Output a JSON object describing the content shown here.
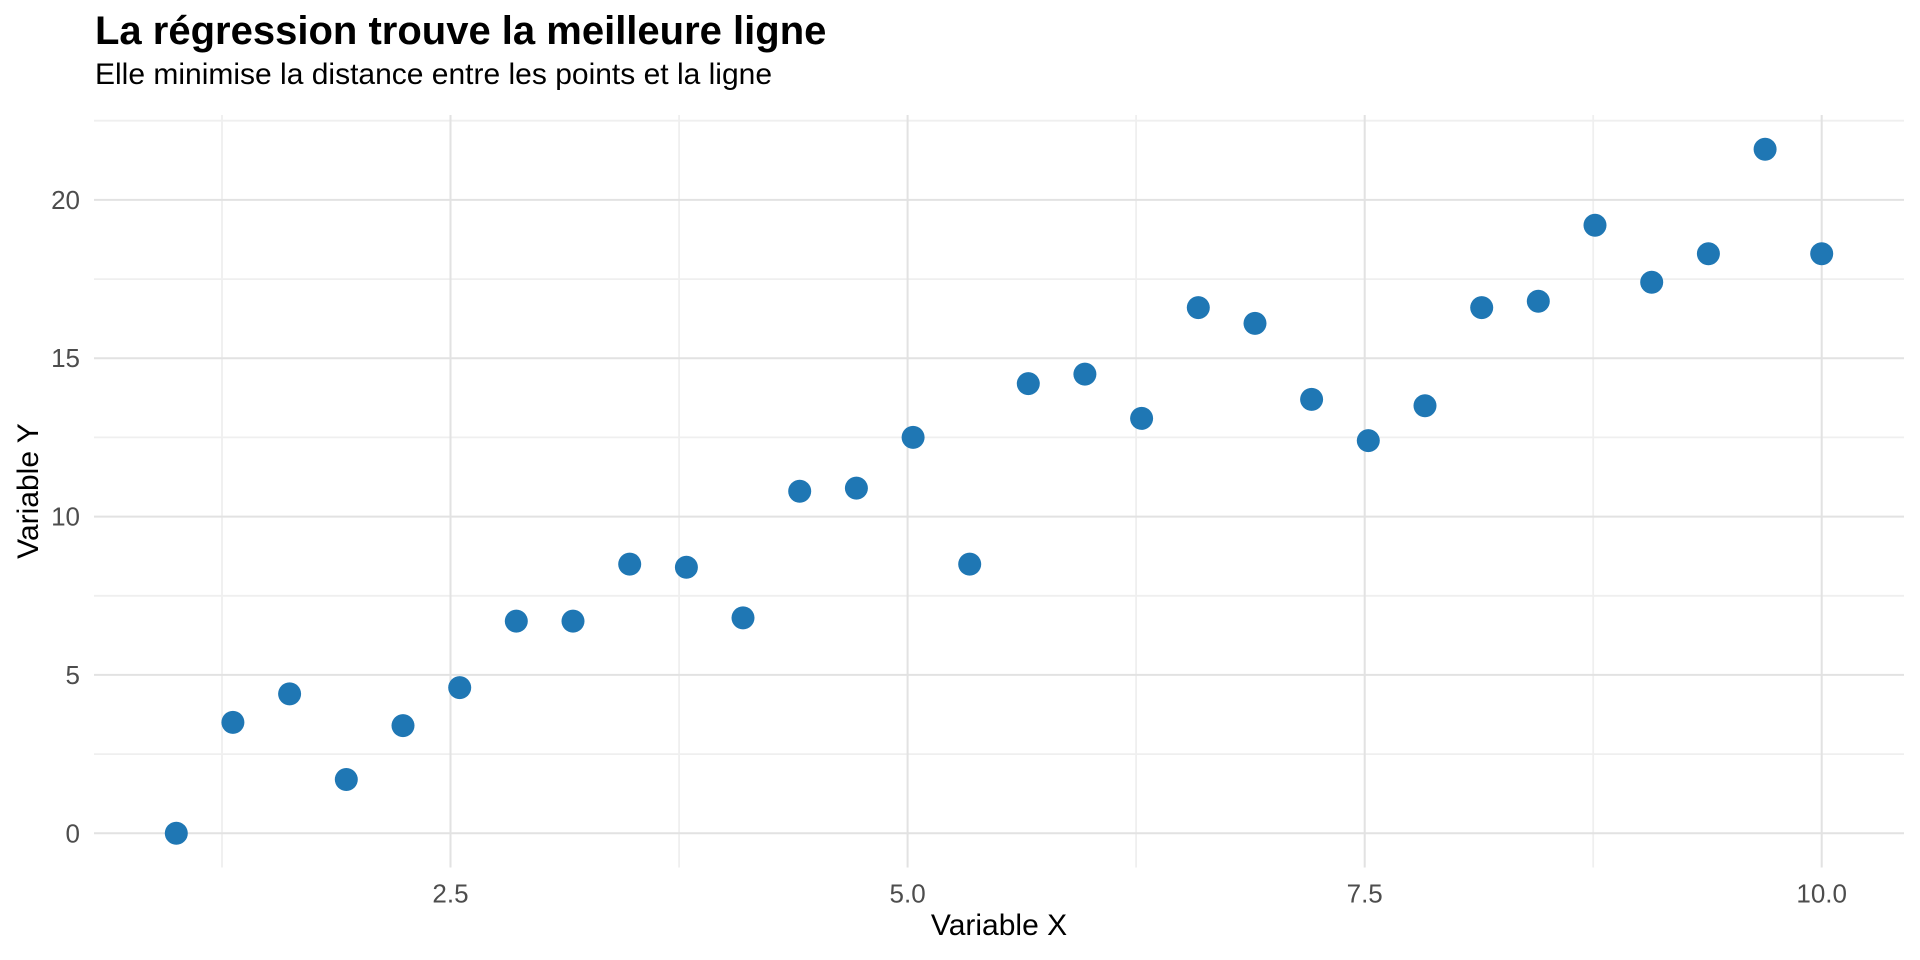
{
  "chart_data": {
    "type": "scatter",
    "title": "La régression trouve la meilleure ligne",
    "subtitle": "Elle minimise la distance entre les points et la ligne",
    "xlabel": "Variable X",
    "ylabel": "Variable Y",
    "xlim": [
      0.55,
      10.45
    ],
    "ylim": [
      -1.08,
      22.68
    ],
    "x_ticks": [
      2.5,
      5.0,
      7.5,
      10.0
    ],
    "x_tick_labels": [
      "2.5",
      "5.0",
      "7.5",
      "10.0"
    ],
    "y_ticks": [
      0,
      5,
      10,
      15,
      20
    ],
    "y_tick_labels": [
      "0",
      "5",
      "10",
      "15",
      "20"
    ],
    "x_minor_gridlines": [
      1.25,
      3.75,
      6.25,
      8.75
    ],
    "y_minor_gridlines": [
      2.5,
      7.5,
      12.5,
      17.5,
      22.5
    ],
    "grid": true,
    "legend": false,
    "point_color": "#1f77b4",
    "point_radius_px": 11.5,
    "background_color": "#ffffff",
    "major_grid_color": "#e2e2e2",
    "minor_grid_color": "#efefef",
    "tick_label_color": "#4d4d4d",
    "x": [
      1.0,
      1.31,
      1.62,
      1.93,
      2.24,
      2.55,
      2.86,
      3.17,
      3.48,
      3.79,
      4.1,
      4.41,
      4.72,
      5.03,
      5.34,
      5.66,
      5.97,
      6.28,
      6.59,
      6.9,
      7.21,
      7.52,
      7.83,
      8.14,
      8.45,
      8.76,
      9.07,
      9.38,
      9.69,
      10.0
    ],
    "y": [
      0.0,
      3.5,
      4.4,
      1.7,
      3.4,
      4.6,
      6.7,
      6.7,
      8.5,
      8.4,
      6.8,
      10.8,
      10.9,
      12.5,
      8.5,
      14.2,
      14.5,
      13.1,
      16.6,
      16.1,
      13.7,
      12.4,
      13.5,
      16.6,
      16.8,
      19.2,
      17.4,
      18.3,
      21.6,
      18.3
    ]
  }
}
